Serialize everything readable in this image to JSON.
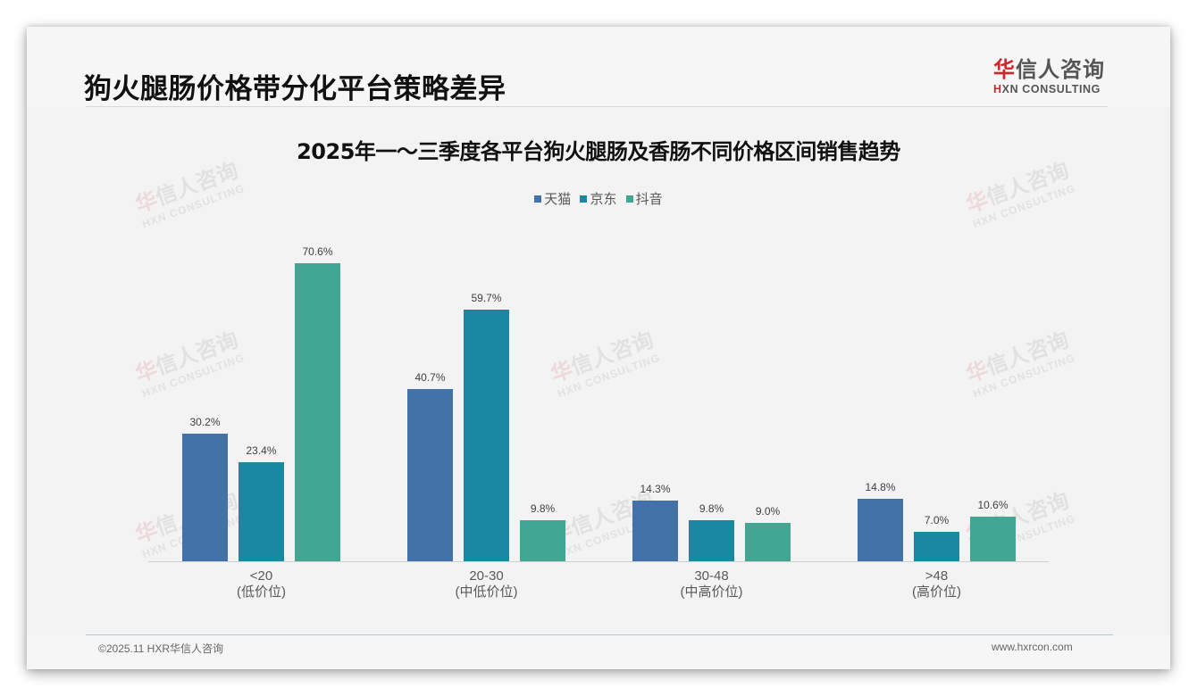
{
  "header": {
    "title": "狗火腿肠价格带分化平台策略差异",
    "logo": {
      "cn_first": "华",
      "cn_rest": "信人咨询",
      "en_first": "H",
      "en_rest": "XN CONSULTING"
    }
  },
  "watermark": {
    "cn_first": "华",
    "cn_rest": "信人咨询",
    "en": "HXN CONSULTING"
  },
  "footer": {
    "left": "©2025.11 HXR华信人咨询",
    "right": "www.hxrcon.com"
  },
  "colors": {
    "tmall": "#4272a8",
    "jd": "#1a88a0",
    "douyin": "#41a692",
    "background": "#f3f3f3",
    "logo_red": "#d0262b"
  },
  "chart_data": {
    "type": "bar",
    "title": "2025年一～三季度各平台狗火腿肠及香肠不同价格区间销售趋势",
    "xlabel": "",
    "ylabel": "",
    "categories": [
      "<20\n(低价位)",
      "20-30\n(中低价位)",
      "30-48\n(中高价位)",
      ">48\n(高价位)"
    ],
    "category_labels": [
      {
        "range": "<20",
        "tier": "(低价位)"
      },
      {
        "range": "20-30",
        "tier": "(中低价位)"
      },
      {
        "range": "30-48",
        "tier": "(中高价位)"
      },
      {
        "range": ">48",
        "tier": "(高价位)"
      }
    ],
    "series": [
      {
        "name": "天猫",
        "color": "#4272a8",
        "values": [
          30.2,
          40.7,
          14.3,
          14.8
        ],
        "labels": [
          "30.2%",
          "40.7%",
          "14.3%",
          "14.8%"
        ]
      },
      {
        "name": "京东",
        "color": "#1a88a0",
        "values": [
          23.4,
          59.7,
          9.8,
          7.0
        ],
        "labels": [
          "23.4%",
          "59.7%",
          "9.8%",
          "7.0%"
        ]
      },
      {
        "name": "抖音",
        "color": "#41a692",
        "values": [
          70.6,
          9.8,
          9.0,
          10.6
        ],
        "labels": [
          "70.6%",
          "9.8%",
          "9.0%",
          "10.6%"
        ]
      }
    ],
    "unit": "%",
    "legend_position": "top",
    "grid": false,
    "ylim": [
      0,
      75
    ]
  }
}
